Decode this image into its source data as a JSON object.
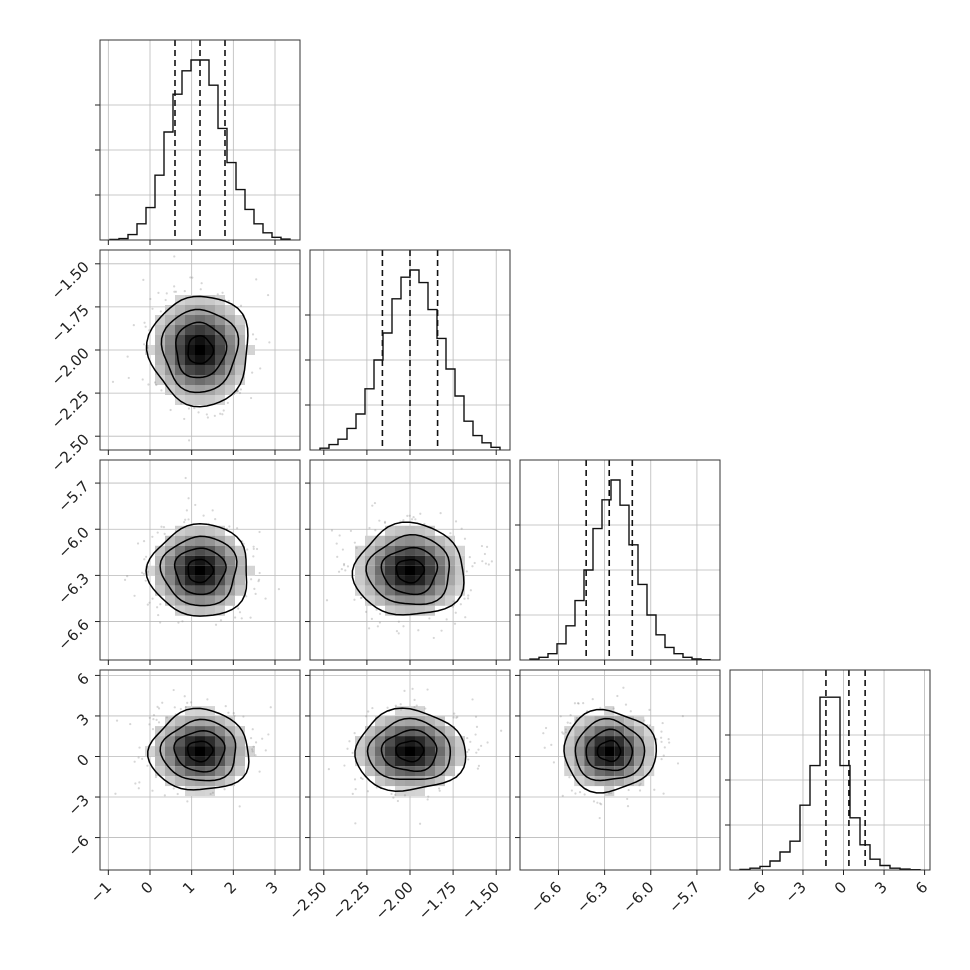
{
  "chart_data": {
    "type": "corner",
    "grid": true,
    "parameters": [
      {
        "index": 0,
        "range": [
          -1.2,
          3.6
        ],
        "ticks": [
          -1,
          0,
          1,
          2,
          3
        ],
        "tick_labels": [
          "−1",
          "0",
          "1",
          "2",
          "3"
        ],
        "quantiles": [
          0.6,
          1.2,
          1.8
        ],
        "hist_y": [
          0.003,
          0.008,
          0.03,
          0.09,
          0.18,
          0.36,
          0.6,
          0.81,
          0.94,
          1.0,
          1.0,
          0.86,
          0.62,
          0.43,
          0.28,
          0.17,
          0.09,
          0.04,
          0.015,
          0.005
        ]
      },
      {
        "index": 1,
        "range": [
          -2.58,
          -1.42
        ],
        "ticks": [
          -2.5,
          -2.25,
          -2.0,
          -1.75,
          -1.5
        ],
        "tick_labels": [
          "−2.50",
          "−2.25",
          "−2.00",
          "−1.75",
          "−1.50"
        ],
        "quantiles": [
          -2.16,
          -2.0,
          -1.84
        ],
        "hist_y": [
          0.01,
          0.03,
          0.06,
          0.12,
          0.2,
          0.34,
          0.5,
          0.65,
          0.84,
          0.96,
          1.0,
          0.93,
          0.78,
          0.62,
          0.45,
          0.3,
          0.16,
          0.08,
          0.04,
          0.015
        ]
      },
      {
        "index": 2,
        "range": [
          -6.85,
          -5.55
        ],
        "ticks": [
          -6.6,
          -6.3,
          -6.0,
          -5.7
        ],
        "tick_labels": [
          "−6.6",
          "−6.3",
          "−6.0",
          "−5.7"
        ],
        "quantiles": [
          -6.42,
          -6.27,
          -6.12
        ],
        "hist_y": [
          0.005,
          0.015,
          0.035,
          0.09,
          0.19,
          0.33,
          0.5,
          0.73,
          0.89,
          1.0,
          0.86,
          0.64,
          0.42,
          0.25,
          0.14,
          0.07,
          0.035,
          0.015,
          0.006,
          0.002
        ]
      },
      {
        "index": 3,
        "range": [
          -8.4,
          6.4
        ],
        "ticks": [
          -6,
          -3,
          0,
          3,
          6
        ],
        "tick_labels": [
          "−6",
          "−3",
          "0",
          "3",
          "6"
        ],
        "quantiles": [
          -1.3,
          0.4,
          1.6
        ],
        "hist_y": [
          0.003,
          0.01,
          0.02,
          0.05,
          0.1,
          0.16,
          0.36,
          0.58,
          0.96,
          0.96,
          0.58,
          0.29,
          0.14,
          0.06,
          0.025,
          0.01,
          0.005,
          0.002
        ]
      }
    ],
    "scatter_ticks_y": {
      "1": {
        "ticks": [
          -2.5,
          -2.25,
          -2.0,
          -1.75,
          -1.5
        ],
        "tick_labels": [
          "−2.50",
          "−2.25",
          "−2.00",
          "−1.75",
          "−1.50"
        ]
      },
      "2": {
        "ticks": [
          -6.6,
          -6.3,
          -6.0,
          -5.7
        ],
        "tick_labels": [
          "−6.6",
          "−6.3",
          "−6.0",
          "−5.7"
        ]
      },
      "3": {
        "ticks": [
          -6,
          -3,
          0,
          3,
          6
        ],
        "tick_labels": [
          "−6",
          "−3",
          "0",
          "3",
          "6"
        ]
      }
    },
    "distribution": {
      "means": [
        1.2,
        -2.0,
        -6.27,
        0.4
      ],
      "sigmas": [
        0.6,
        0.16,
        0.15,
        1.5
      ],
      "n_scatter_points": 520
    },
    "contour_levels_sigma": [
      0.5,
      1.0,
      1.5,
      2.0
    ],
    "colors": {
      "hist": "#111111",
      "contour": "#000000",
      "density_max": "#000000",
      "points": "#8a8a8a"
    }
  }
}
